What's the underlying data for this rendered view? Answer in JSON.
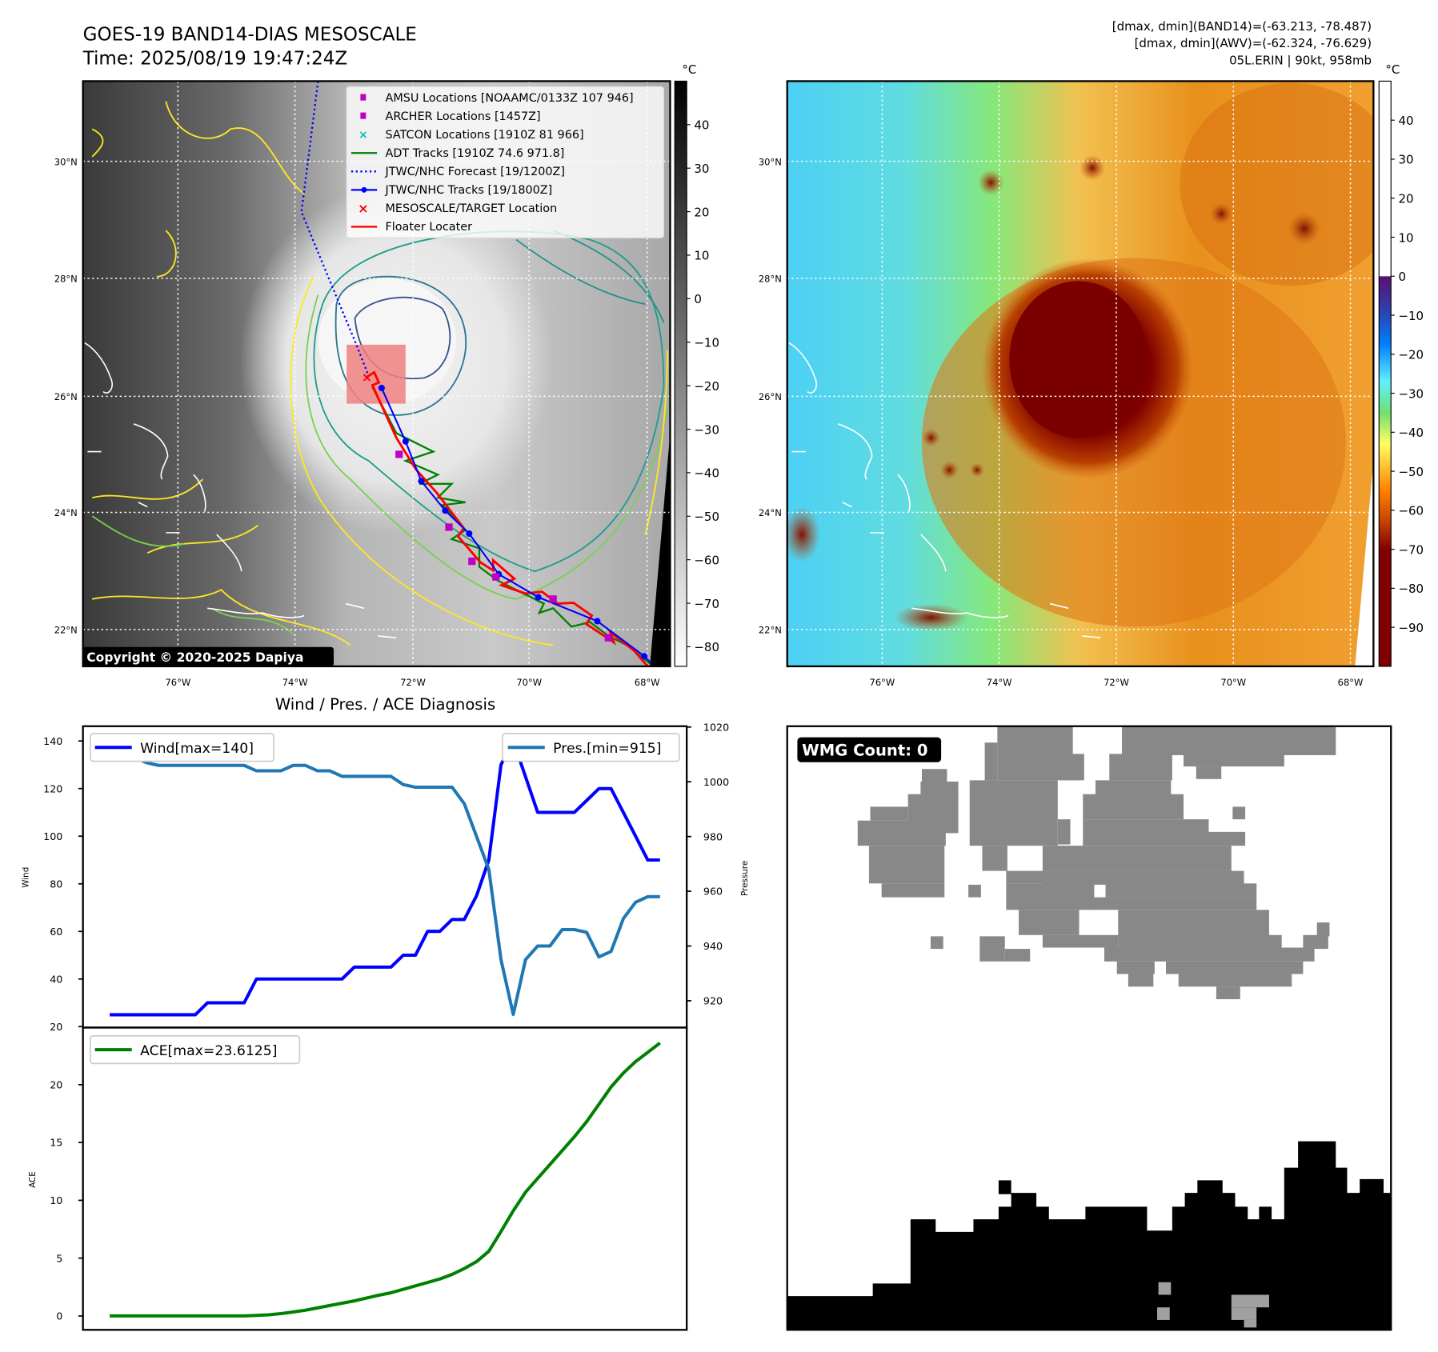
{
  "header": {
    "title": "GOES-19 BAND14-DIAS MESOSCALE",
    "time": "Time: 2025/08/19 19:47:24Z",
    "info_band14": "[dmax, dmin](BAND14)=(-63.213, -78.487)",
    "info_awv": "[dmax, dmin](AWV)=(-62.324, -76.629)",
    "storm": "05L.ERIN | 90kt, 958mb"
  },
  "maps": {
    "lat_labels": [
      "30°N",
      "28°N",
      "26°N",
      "24°N",
      "22°N"
    ],
    "lon_labels": [
      "76°W",
      "74°W",
      "72°W",
      "70°W",
      "68°W"
    ],
    "copyright": "Copyright © 2020-2025 Dapiya",
    "colors": {
      "track_blue": "#0000ff",
      "floater_red": "#ff0000",
      "adt_green": "#008000",
      "satcon_cyan": "#00c0c0",
      "amsu_magenta": "#c000c0",
      "target_box": "#f08080"
    },
    "legend": [
      {
        "icon": "magenta-square",
        "label": "AMSU Locations [NOAAMC/0133Z 107 946]"
      },
      {
        "icon": "magenta-square",
        "label": "ARCHER Locations [1457Z]"
      },
      {
        "icon": "cyan-x",
        "label": "SATCON Locations [1910Z 81 966]"
      },
      {
        "icon": "green-line",
        "label": "ADT Tracks [1910Z 74.6 971.8]"
      },
      {
        "icon": "blue-dotted-line",
        "label": "JTWC/NHC Forecast [19/1200Z]"
      },
      {
        "icon": "blue-line-dot",
        "label": "JTWC/NHC Tracks [19/1800Z]"
      },
      {
        "icon": "red-x",
        "label": "MESOSCALE/TARGET Location"
      },
      {
        "icon": "red-line",
        "label": "Floater Locater"
      }
    ],
    "colorbar_gray": {
      "unit": "°C",
      "range": [
        -84.5,
        50
      ],
      "ticks": [
        "40",
        "30",
        "20",
        "10",
        "0",
        "−10",
        "−20",
        "−30",
        "−40",
        "−50",
        "−60",
        "−70",
        "−80"
      ]
    },
    "colorbar_color": {
      "unit": "°C",
      "range": [
        -100,
        50
      ],
      "ticks": [
        "40",
        "30",
        "20",
        "10",
        "0",
        "−10",
        "−20",
        "−30",
        "−40",
        "−50",
        "−60",
        "−70",
        "−80",
        "−90"
      ]
    }
  },
  "chart_data": [
    {
      "type": "line",
      "title": "Wind / Pres. / ACE Diagnosis",
      "ylabel": "Wind",
      "ylabel_right": "Pressure",
      "ylim": [
        19.6,
        146.2
      ],
      "ylim_right": [
        910.2,
        1020.3
      ],
      "yticks": [
        20,
        40,
        60,
        80,
        100,
        120,
        140
      ],
      "yticks_right": [
        920,
        940,
        960,
        980,
        1000,
        1020
      ],
      "series": [
        {
          "name": "Wind[max=140]",
          "color": "#0000ff",
          "axis": "left",
          "values": [
            25,
            25,
            25,
            25,
            25,
            25,
            25,
            25,
            30,
            30,
            30,
            30,
            40,
            40,
            40,
            40,
            40,
            40,
            40,
            40,
            45,
            45,
            45,
            45,
            50,
            50,
            60,
            60,
            65,
            65,
            75,
            90,
            130,
            140,
            125,
            110,
            110,
            110,
            110,
            115,
            120,
            120,
            110,
            100,
            90,
            90
          ]
        },
        {
          "name": "Pres.[min=915]",
          "color": "#1f77b4",
          "axis": "right",
          "values": [
            1016,
            1016,
            1009,
            1007,
            1006,
            1006,
            1006,
            1006,
            1006,
            1006,
            1006,
            1006,
            1004,
            1004,
            1004,
            1006,
            1006,
            1004,
            1004,
            1002,
            1002,
            1002,
            1002,
            1002,
            999,
            998,
            998,
            998,
            998,
            992,
            980,
            968,
            935,
            915,
            935,
            940,
            940,
            946,
            946,
            945,
            936,
            938,
            950,
            956,
            958,
            958
          ]
        }
      ]
    },
    {
      "type": "line",
      "ylabel": "ACE",
      "ylim": [
        -1.2,
        24.94
      ],
      "yticks": [
        0,
        5,
        10,
        15,
        20
      ],
      "series": [
        {
          "name": "ACE[max=23.6125]",
          "color": "#008000",
          "values": [
            0,
            0,
            0,
            0,
            0,
            0,
            0,
            0,
            0,
            0,
            0,
            0,
            0.05,
            0.1,
            0.2,
            0.35,
            0.5,
            0.7,
            0.9,
            1.1,
            1.3,
            1.55,
            1.8,
            2.0,
            2.3,
            2.6,
            2.9,
            3.2,
            3.6,
            4.1,
            4.7,
            5.6,
            7.3,
            9.1,
            10.7,
            11.9,
            13.1,
            14.3,
            15.5,
            16.8,
            18.3,
            19.8,
            21.0,
            22.0,
            22.8,
            23.6125
          ]
        }
      ]
    }
  ],
  "wmg": {
    "badge": "WMG Count: 0"
  }
}
